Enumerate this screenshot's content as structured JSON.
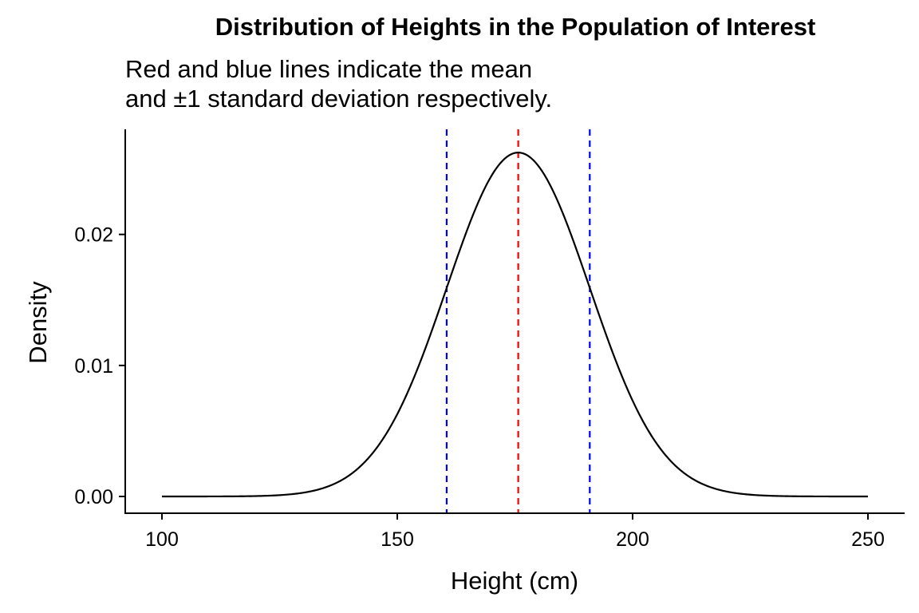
{
  "chart_data": {
    "type": "line",
    "title": "Distribution of Heights in the Population of Interest",
    "subtitle_lines": [
      "Red and blue lines indicate the mean",
      "and ±1 standard deviation respectively."
    ],
    "xlabel": "Height (cm)",
    "ylabel": "Density",
    "xlim": [
      100,
      250
    ],
    "ylim": [
      0,
      0.0265
    ],
    "x_ticks": [
      100,
      150,
      200,
      250
    ],
    "x_tick_labels": [
      "100",
      "150",
      "200",
      "250"
    ],
    "y_ticks": [
      0.0,
      0.01,
      0.02
    ],
    "y_tick_labels": [
      "0.00",
      "0.01",
      "0.02"
    ],
    "grid": false,
    "series": [
      {
        "distribution": "normal",
        "mean": 175.7,
        "sd": 15.2,
        "x_range": [
          100,
          250
        ],
        "color": "#000000"
      }
    ],
    "reference_lines": [
      {
        "x": 160.5,
        "color": "#0000ff",
        "linestyle": "dashed"
      },
      {
        "x": 175.7,
        "color": "#ff0000",
        "linestyle": "dashed"
      },
      {
        "x": 190.9,
        "color": "#0000ff",
        "linestyle": "dashed"
      }
    ]
  }
}
